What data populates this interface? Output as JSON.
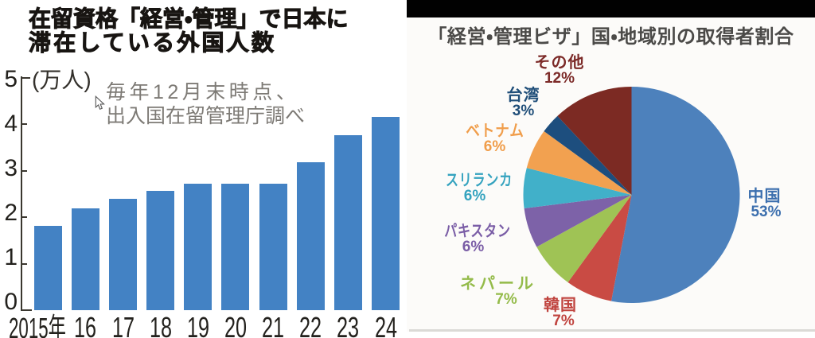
{
  "left_chart": {
    "title_line1": "在留資格「経営・管理」で日本に",
    "title_line2": "滞在している外国人数",
    "unit_label": "(万人)",
    "note_line1": "毎年12月末時点、",
    "note_line2": "出入国在留管理庁調べ"
  },
  "right_chart": {
    "title": "「経営・管理ビザ」国・地域別の取得者割合"
  },
  "chart_data": [
    {
      "type": "bar",
      "title": "在留資格「経営・管理」で日本に滞在している外国人数",
      "note": "毎年12月末時点、出入国在留管理庁調べ",
      "categories": [
        "2015年",
        "16",
        "17",
        "18",
        "19",
        "20",
        "21",
        "22",
        "23",
        "24"
      ],
      "values": [
        1.81,
        2.19,
        2.4,
        2.57,
        2.72,
        2.72,
        2.72,
        3.18,
        3.76,
        4.16
      ],
      "ylabel": "(万人)",
      "ylim": [
        0,
        5
      ],
      "yticks": [
        0,
        1,
        2,
        3,
        4,
        5
      ],
      "grid": false,
      "bar_color": "#4382c4"
    },
    {
      "type": "pie",
      "title": "「経営・管理ビザ」国・地域別の取得者割合",
      "labels": [
        "中国",
        "韓国",
        "ネパール",
        "パキスタン",
        "スリランカ",
        "ベトナム",
        "台湾",
        "その他"
      ],
      "values": [
        53,
        7,
        7,
        6,
        6,
        6,
        3,
        12
      ],
      "percent_labels": [
        "53%",
        "7%",
        "7%",
        "6%",
        "6%",
        "6%",
        "3%",
        "12%"
      ],
      "slice_colors": [
        "#4d81bc",
        "#c94b44",
        "#9fc355",
        "#7d62a8",
        "#41b0c9",
        "#f2a150",
        "#1d4e7e",
        "#7c2a23"
      ],
      "label_colors": [
        "#3c6fae",
        "#c0443f",
        "#94bb4a",
        "#7a5da6",
        "#35a3bf",
        "#f09d4a",
        "#1f4e79",
        "#7c2a28"
      ],
      "start_angle": "top",
      "direction": "clockwise",
      "legend": "none"
    }
  ]
}
